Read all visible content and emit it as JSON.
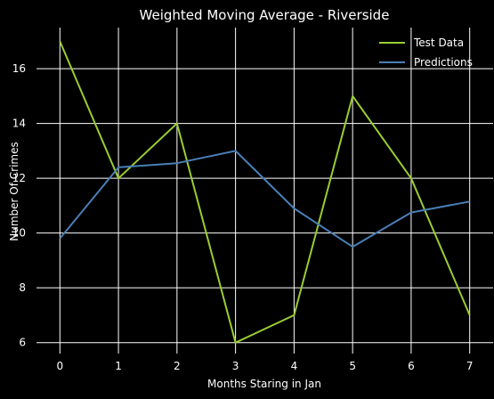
{
  "chart_data": {
    "type": "line",
    "title": "Weighted Moving Average - Riverside",
    "xlabel": "Months Staring in Jan",
    "ylabel": "Number Of Crimes",
    "x": [
      0,
      1,
      2,
      3,
      4,
      5,
      6,
      7
    ],
    "xlim": [
      -0.4,
      7.4
    ],
    "ylim": [
      5.6,
      17.5
    ],
    "xticks": [
      0,
      1,
      2,
      3,
      4,
      5,
      6,
      7
    ],
    "yticks": [
      6,
      8,
      10,
      12,
      14,
      16
    ],
    "grid": true,
    "legend_position": "top-right",
    "series": [
      {
        "name": "Test Data",
        "color": "#9acd32",
        "values": [
          17,
          12,
          14,
          6,
          7,
          15,
          12,
          7
        ]
      },
      {
        "name": "Predictions",
        "color": "#4a7fb5",
        "values": [
          9.8,
          12.4,
          12.55,
          13,
          10.9,
          9.5,
          10.75,
          11.15
        ]
      }
    ]
  }
}
